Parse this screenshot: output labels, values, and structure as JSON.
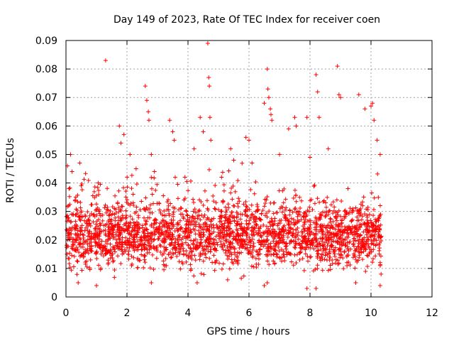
{
  "chart_data": {
    "type": "scatter",
    "title": "Day 149 of 2023, Rate Of TEC Index for receiver coen",
    "xlabel": "GPS time / hours",
    "ylabel": "ROTI / TECUs",
    "xlim": [
      0,
      12
    ],
    "ylim": [
      0,
      0.09
    ],
    "xticks": [
      0,
      2,
      4,
      6,
      8,
      10,
      12
    ],
    "yticks": [
      0,
      0.01,
      0.02,
      0.03,
      0.04,
      0.05,
      0.06,
      0.07,
      0.08,
      0.09
    ],
    "xtick_labels": [
      "0",
      "2",
      "4",
      "6",
      "8",
      "10",
      "12"
    ],
    "ytick_labels": [
      "0",
      "0.01",
      "0.02",
      "0.03",
      "0.04",
      "0.05",
      "0.06",
      "0.07",
      "0.08",
      "0.09"
    ],
    "grid": true,
    "marker": "+",
    "color": "#ff0000",
    "series": [
      {
        "points": [
          [
            0.05,
            0.046
          ],
          [
            0.1,
            0.038
          ],
          [
            0.15,
            0.05
          ],
          [
            0.2,
            0.044
          ],
          [
            0.3,
            0.034
          ],
          [
            0.45,
            0.047
          ],
          [
            0.5,
            0.039
          ],
          [
            1.3,
            0.083
          ],
          [
            1.75,
            0.06
          ],
          [
            1.8,
            0.054
          ],
          [
            1.9,
            0.057
          ],
          [
            2.1,
            0.05
          ],
          [
            2.3,
            0.045
          ],
          [
            2.6,
            0.074
          ],
          [
            2.65,
            0.069
          ],
          [
            2.7,
            0.065
          ],
          [
            2.72,
            0.062
          ],
          [
            2.8,
            0.05
          ],
          [
            2.9,
            0.044
          ],
          [
            3.4,
            0.062
          ],
          [
            3.5,
            0.058
          ],
          [
            3.55,
            0.055
          ],
          [
            3.9,
            0.042
          ],
          [
            4.2,
            0.052
          ],
          [
            4.4,
            0.063
          ],
          [
            4.5,
            0.058
          ],
          [
            4.65,
            0.089
          ],
          [
            4.68,
            0.077
          ],
          [
            4.7,
            0.074
          ],
          [
            4.72,
            0.063
          ],
          [
            4.75,
            0.055
          ],
          [
            5.1,
            0.042
          ],
          [
            5.4,
            0.052
          ],
          [
            5.5,
            0.048
          ],
          [
            5.9,
            0.056
          ],
          [
            6.0,
            0.055
          ],
          [
            6.1,
            0.047
          ],
          [
            6.5,
            0.068
          ],
          [
            6.6,
            0.08
          ],
          [
            6.62,
            0.073
          ],
          [
            6.65,
            0.07
          ],
          [
            6.7,
            0.066
          ],
          [
            6.72,
            0.064
          ],
          [
            6.75,
            0.062
          ],
          [
            7.0,
            0.05
          ],
          [
            7.3,
            0.059
          ],
          [
            7.5,
            0.063
          ],
          [
            7.55,
            0.06
          ],
          [
            7.9,
            0.063
          ],
          [
            8.0,
            0.049
          ],
          [
            8.2,
            0.078
          ],
          [
            8.25,
            0.072
          ],
          [
            8.3,
            0.063
          ],
          [
            8.6,
            0.052
          ],
          [
            8.9,
            0.081
          ],
          [
            8.95,
            0.071
          ],
          [
            9.0,
            0.07
          ],
          [
            9.6,
            0.071
          ],
          [
            9.8,
            0.066
          ],
          [
            10.0,
            0.067
          ],
          [
            10.05,
            0.068
          ],
          [
            10.1,
            0.062
          ],
          [
            10.2,
            0.055
          ],
          [
            10.3,
            0.05
          ],
          [
            0.4,
            0.005
          ],
          [
            1.0,
            0.004
          ],
          [
            2.8,
            0.005
          ],
          [
            4.3,
            0.005
          ],
          [
            5.3,
            0.006
          ],
          [
            6.5,
            0.004
          ],
          [
            6.6,
            0.005
          ],
          [
            7.9,
            0.003
          ],
          [
            8.2,
            0.003
          ],
          [
            9.5,
            0.005
          ],
          [
            10.3,
            0.004
          ],
          [
            10.3,
            0.011
          ],
          [
            10.33,
            0.008
          ]
        ]
      }
    ]
  }
}
